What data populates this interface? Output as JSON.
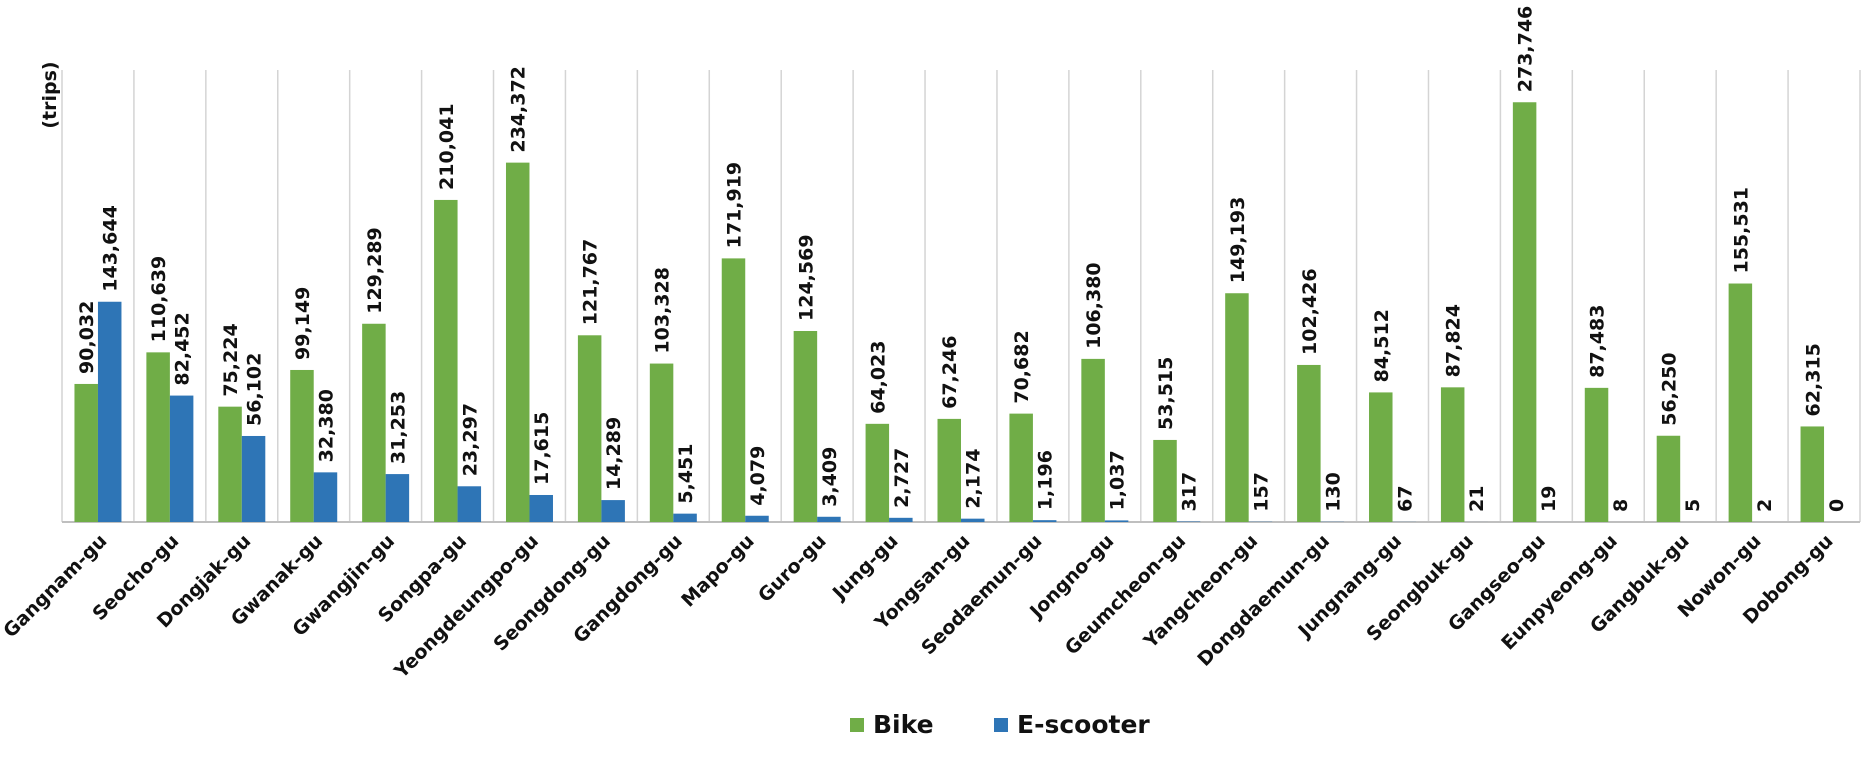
{
  "chart_data": {
    "type": "bar",
    "ylabel": "(trips)",
    "ylim": [
      0,
      300000
    ],
    "grid": "vertical",
    "legend_position": "bottom",
    "categories": [
      "Gangnam-gu",
      "Seocho-gu",
      "Dongjak-gu",
      "Gwanak-gu",
      "Gwangjin-gu",
      "Songpa-gu",
      "Yeongdeungpo-gu",
      "Seongdong-gu",
      "Gangdong-gu",
      "Mapo-gu",
      "Guro-gu",
      "Jung-gu",
      "Yongsan-gu",
      "Seodaemun-gu",
      "Jongno-gu",
      "Geumcheon-gu",
      "Yangcheon-gu",
      "Dongdaemun-gu",
      "Jungnang-gu",
      "Seongbuk-gu",
      "Gangseo-gu",
      "Eunpyeong-gu",
      "Gangbuk-gu",
      "Nowon-gu",
      "Dobong-gu"
    ],
    "series": [
      {
        "name": "Bike",
        "color": "#70ad47",
        "values": [
          90032,
          110639,
          75224,
          99149,
          129289,
          210041,
          234372,
          121767,
          103328,
          171919,
          124569,
          64023,
          67246,
          70682,
          106380,
          53515,
          149193,
          102426,
          84512,
          87824,
          273746,
          87483,
          56250,
          155531,
          62315
        ],
        "labels": [
          "90,032",
          "110,639",
          "75,224",
          "99,149",
          "129,289",
          "210,041",
          "234,372",
          "121,767",
          "103,328",
          "171,919",
          "124,569",
          "64,023",
          "67,246",
          "70,682",
          "106,380",
          "53,515",
          "149,193",
          "102,426",
          "84,512",
          "87,824",
          "273,746",
          "87,483",
          "56,250",
          "155,531",
          "62,315"
        ]
      },
      {
        "name": "E-scooter",
        "color": "#2e75b6",
        "values": [
          143644,
          82452,
          56102,
          32380,
          31253,
          23297,
          17615,
          14289,
          5451,
          4079,
          3409,
          2727,
          2174,
          1196,
          1037,
          317,
          157,
          130,
          67,
          21,
          19,
          8,
          5,
          2,
          0
        ],
        "labels": [
          "143,644",
          "82,452",
          "56,102",
          "32,380",
          "31,253",
          "23,297",
          "17,615",
          "14,289",
          "5,451",
          "4,079",
          "3,409",
          "2,727",
          "2,174",
          "1,196",
          "1,037",
          "317",
          "157",
          "130",
          "67",
          "21",
          "19",
          "8",
          "5",
          "2",
          "0"
        ]
      }
    ]
  }
}
